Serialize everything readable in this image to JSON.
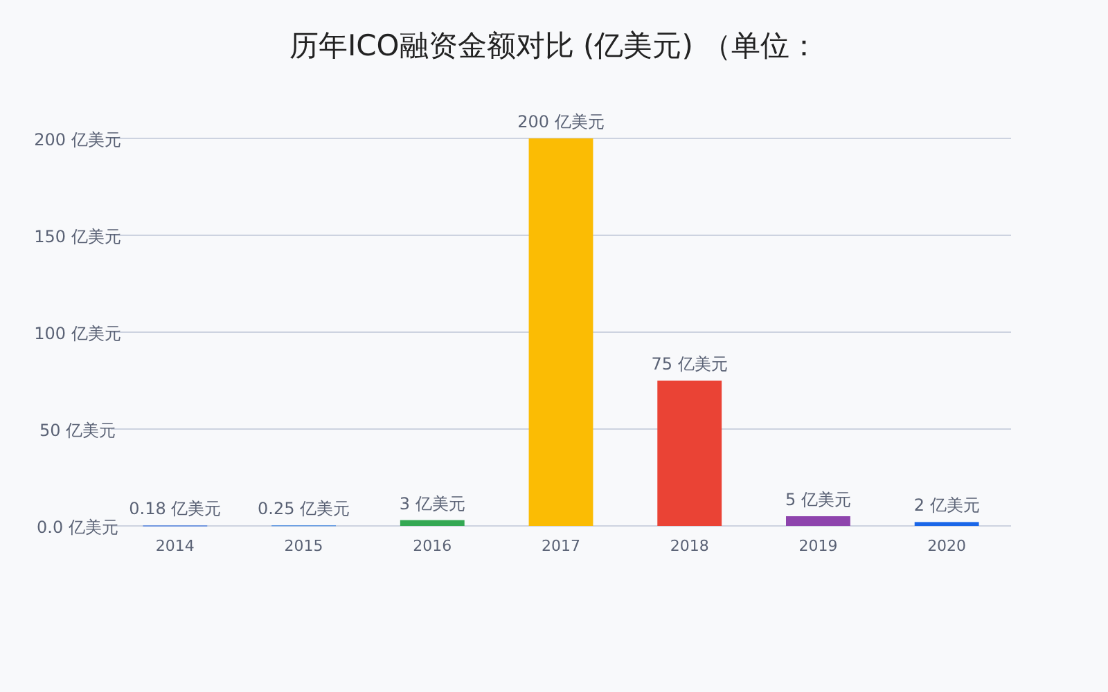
{
  "chart_data": {
    "type": "bar",
    "title": "历年ICO融资金额对比 (亿美元) （单位：",
    "categories": [
      "2014",
      "2015",
      "2016",
      "2017",
      "2018",
      "2019",
      "2020"
    ],
    "values": [
      0.18,
      0.25,
      3,
      200,
      75,
      5,
      2
    ],
    "colors": [
      "#1a5fe0",
      "#2f7de1",
      "#34a853",
      "#fbbc04",
      "#ea4335",
      "#8e44ad",
      "#1a66e8"
    ],
    "value_labels": [
      "0.18 亿美元",
      "0.25 亿美元",
      "3 亿美元",
      "200 亿美元",
      "75 亿美元",
      "5 亿美元",
      "2 亿美元"
    ],
    "ylim": [
      0,
      200
    ],
    "yticks": [
      {
        "value": 0,
        "label": "0.0 亿美元"
      },
      {
        "value": 50,
        "label": "50 亿美元"
      },
      {
        "value": 100,
        "label": "100 亿美元"
      },
      {
        "value": 150,
        "label": "150 亿美元"
      },
      {
        "value": 200,
        "label": "200 亿美元"
      }
    ],
    "grid": "y"
  }
}
